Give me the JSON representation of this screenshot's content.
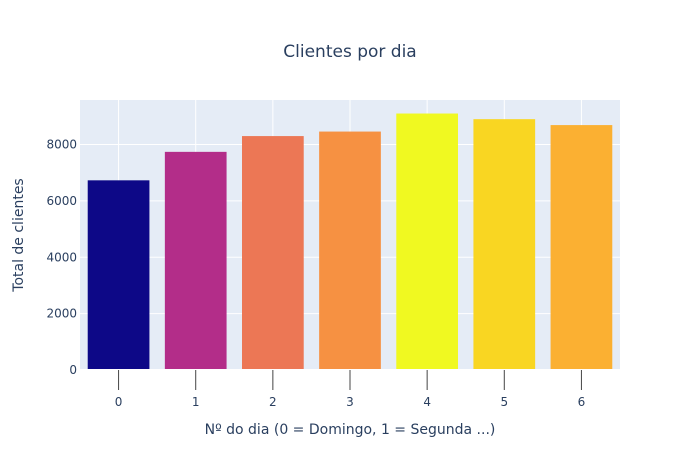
{
  "chart_data": {
    "type": "bar",
    "title": "Clientes por dia",
    "xlabel": "Nº do dia (0 = Domingo, 1 = Segunda ...)",
    "ylabel": "Total de clientes",
    "categories": [
      "0",
      "1",
      "2",
      "3",
      "4",
      "5",
      "6"
    ],
    "values": [
      6730,
      7740,
      8300,
      8460,
      9100,
      8900,
      8690
    ],
    "colors": [
      "#0d0887",
      "#b32d89",
      "#ec7755",
      "#f69142",
      "#f0f921",
      "#f9d622",
      "#fbb032"
    ],
    "y_ticks": [
      0,
      2000,
      4000,
      6000,
      8000
    ],
    "y_tick_labels": [
      "0",
      "2000",
      "4000",
      "6000",
      "8000"
    ],
    "ylim": [
      0,
      9580
    ],
    "grid": true,
    "legend": "none",
    "plot_background": "#e5ecf6",
    "grid_color": "#ffffff",
    "text_color": "#2a3f5f"
  }
}
